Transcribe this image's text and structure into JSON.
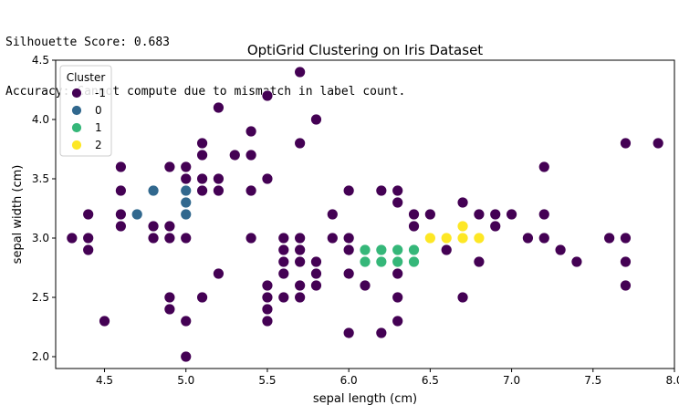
{
  "console": {
    "line1": "Silhouette Score: 0.683",
    "line2": "Accuracy: Cannot compute due to mismatch in label count."
  },
  "chart_data": {
    "type": "scatter",
    "title": "OptiGrid Clustering on Iris Dataset",
    "xlabel": "sepal length (cm)",
    "ylabel": "sepal width (cm)",
    "xlim": [
      4.2,
      8.0
    ],
    "ylim": [
      1.9,
      4.5
    ],
    "xticks": [
      "4.5",
      "5.0",
      "5.5",
      "6.0",
      "6.5",
      "7.0",
      "7.5",
      "8.0"
    ],
    "yticks": [
      "2.0",
      "2.5",
      "3.0",
      "3.5",
      "4.0",
      "4.5"
    ],
    "grid": false,
    "legend": {
      "title": "Cluster",
      "placement": "top-left"
    },
    "series": [
      {
        "name": "-1",
        "color": "#440154",
        "points": [
          [
            4.3,
            3.0
          ],
          [
            4.4,
            3.2
          ],
          [
            4.4,
            3.0
          ],
          [
            4.4,
            2.9
          ],
          [
            4.5,
            2.3
          ],
          [
            4.6,
            3.6
          ],
          [
            4.6,
            3.4
          ],
          [
            4.6,
            3.2
          ],
          [
            4.6,
            3.1
          ],
          [
            4.8,
            3.1
          ],
          [
            4.8,
            3.0
          ],
          [
            4.9,
            3.6
          ],
          [
            4.9,
            3.1
          ],
          [
            4.9,
            3.0
          ],
          [
            4.9,
            2.5
          ],
          [
            4.9,
            2.4
          ],
          [
            5.0,
            3.6
          ],
          [
            5.0,
            3.5
          ],
          [
            5.0,
            3.0
          ],
          [
            5.0,
            2.3
          ],
          [
            5.0,
            2.0
          ],
          [
            5.1,
            3.8
          ],
          [
            5.1,
            3.7
          ],
          [
            5.1,
            3.5
          ],
          [
            5.1,
            3.4
          ],
          [
            5.1,
            2.5
          ],
          [
            5.2,
            4.1
          ],
          [
            5.2,
            3.5
          ],
          [
            5.2,
            3.4
          ],
          [
            5.2,
            2.7
          ],
          [
            5.3,
            3.7
          ],
          [
            5.4,
            3.9
          ],
          [
            5.4,
            3.7
          ],
          [
            5.4,
            3.4
          ],
          [
            5.4,
            3.0
          ],
          [
            5.5,
            4.2
          ],
          [
            5.5,
            3.5
          ],
          [
            5.5,
            2.6
          ],
          [
            5.5,
            2.5
          ],
          [
            5.5,
            2.4
          ],
          [
            5.5,
            2.3
          ],
          [
            5.6,
            3.0
          ],
          [
            5.6,
            2.9
          ],
          [
            5.6,
            2.8
          ],
          [
            5.6,
            2.7
          ],
          [
            5.6,
            2.5
          ],
          [
            5.7,
            4.4
          ],
          [
            5.7,
            3.8
          ],
          [
            5.7,
            3.0
          ],
          [
            5.7,
            2.9
          ],
          [
            5.7,
            2.8
          ],
          [
            5.7,
            2.6
          ],
          [
            5.7,
            2.5
          ],
          [
            5.8,
            4.0
          ],
          [
            5.8,
            2.8
          ],
          [
            5.8,
            2.7
          ],
          [
            5.8,
            2.6
          ],
          [
            5.9,
            3.2
          ],
          [
            5.9,
            3.0
          ],
          [
            6.0,
            3.4
          ],
          [
            6.0,
            3.0
          ],
          [
            6.0,
            2.9
          ],
          [
            6.0,
            2.7
          ],
          [
            6.0,
            2.2
          ],
          [
            6.1,
            2.6
          ],
          [
            6.2,
            3.4
          ],
          [
            6.2,
            2.2
          ],
          [
            6.3,
            3.4
          ],
          [
            6.3,
            3.3
          ],
          [
            6.3,
            2.7
          ],
          [
            6.3,
            2.5
          ],
          [
            6.3,
            2.3
          ],
          [
            6.4,
            3.2
          ],
          [
            6.4,
            3.1
          ],
          [
            6.5,
            3.2
          ],
          [
            6.6,
            2.9
          ],
          [
            6.7,
            3.3
          ],
          [
            6.7,
            2.5
          ],
          [
            6.8,
            3.2
          ],
          [
            6.8,
            2.8
          ],
          [
            6.9,
            3.2
          ],
          [
            6.9,
            3.1
          ],
          [
            7.0,
            3.2
          ],
          [
            7.1,
            3.0
          ],
          [
            7.2,
            3.6
          ],
          [
            7.2,
            3.2
          ],
          [
            7.2,
            3.0
          ],
          [
            7.3,
            2.9
          ],
          [
            7.4,
            2.8
          ],
          [
            7.6,
            3.0
          ],
          [
            7.7,
            3.8
          ],
          [
            7.7,
            3.0
          ],
          [
            7.7,
            2.8
          ],
          [
            7.7,
            2.6
          ],
          [
            7.9,
            3.8
          ]
        ]
      },
      {
        "name": "0",
        "color": "#31688e",
        "points": [
          [
            4.7,
            3.2
          ],
          [
            4.8,
            3.4
          ],
          [
            5.0,
            3.4
          ],
          [
            5.0,
            3.3
          ],
          [
            5.0,
            3.2
          ]
        ]
      },
      {
        "name": "1",
        "color": "#35b779",
        "points": [
          [
            6.1,
            2.9
          ],
          [
            6.1,
            2.8
          ],
          [
            6.2,
            2.9
          ],
          [
            6.2,
            2.8
          ],
          [
            6.3,
            2.9
          ],
          [
            6.3,
            2.8
          ],
          [
            6.4,
            2.9
          ],
          [
            6.4,
            2.8
          ]
        ]
      },
      {
        "name": "2",
        "color": "#fde725",
        "points": [
          [
            6.5,
            3.0
          ],
          [
            6.6,
            3.0
          ],
          [
            6.7,
            3.1
          ],
          [
            6.7,
            3.0
          ],
          [
            6.8,
            3.0
          ]
        ]
      }
    ]
  }
}
